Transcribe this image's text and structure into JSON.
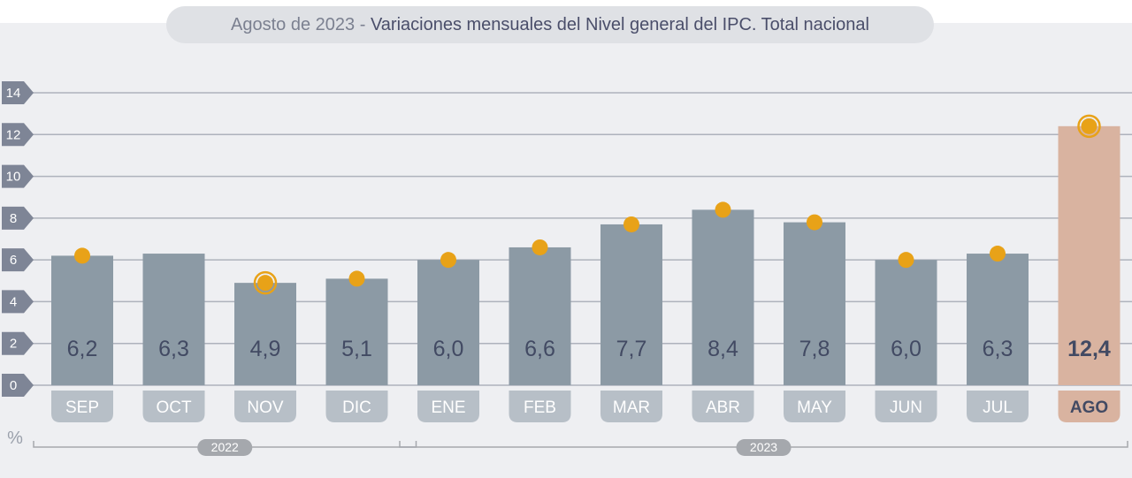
{
  "title": {
    "date": "Agosto de 2023",
    "separator": " - ",
    "text": "Variaciones mensuales del Nivel general del IPC. Total nacional"
  },
  "colors": {
    "bar": "#8c9aa5",
    "highlight_bar": "#d9b3a0",
    "marker": "#e8a218",
    "grid": "#aeb2bc",
    "tick_badge": "#7e8596",
    "month_badge": "#b7bfc7",
    "highlight_month_badge": "#d9b3a0",
    "year_badge": "#a5a8ad",
    "value_text": "#424a63"
  },
  "chart_data": {
    "type": "bar",
    "title": "Variaciones mensuales del Nivel general del IPC. Total nacional",
    "subtitle": "Agosto de 2023",
    "xlabel": "",
    "ylabel": "%",
    "ylim": [
      0,
      14
    ],
    "yticks": [
      0,
      2,
      4,
      6,
      8,
      10,
      12,
      14
    ],
    "grid": true,
    "categories": [
      "SEP",
      "OCT",
      "NOV",
      "DIC",
      "ENE",
      "FEB",
      "MAR",
      "ABR",
      "MAY",
      "JUN",
      "JUL",
      "AGO"
    ],
    "values": [
      6.2,
      6.3,
      4.9,
      5.1,
      6.0,
      6.6,
      7.7,
      8.4,
      7.8,
      6.0,
      6.3,
      12.4
    ],
    "labels": [
      "6,2",
      "6,3",
      "4,9",
      "5,1",
      "6,0",
      "6,6",
      "7,7",
      "8,4",
      "7,8",
      "6,0",
      "6,3",
      "12,4"
    ],
    "markers": [
      {
        "index": 0,
        "value": 6.2,
        "ringed": false
      },
      {
        "index": 2,
        "value": 4.9,
        "ringed": true
      },
      {
        "index": 3,
        "value": 5.1,
        "ringed": false
      },
      {
        "index": 4,
        "value": 6.0,
        "ringed": false
      },
      {
        "index": 5,
        "value": 6.6,
        "ringed": false
      },
      {
        "index": 6,
        "value": 7.7,
        "ringed": false
      },
      {
        "index": 7,
        "value": 8.4,
        "ringed": false
      },
      {
        "index": 8,
        "value": 7.8,
        "ringed": false
      },
      {
        "index": 9,
        "value": 6.0,
        "ringed": false
      },
      {
        "index": 10,
        "value": 6.3,
        "ringed": false
      },
      {
        "index": 11,
        "value": 12.4,
        "ringed": true
      }
    ],
    "highlight_index": 11,
    "year_groups": [
      {
        "label": "2022",
        "from": 0,
        "to": 3
      },
      {
        "label": "2023",
        "from": 4,
        "to": 11
      }
    ]
  }
}
